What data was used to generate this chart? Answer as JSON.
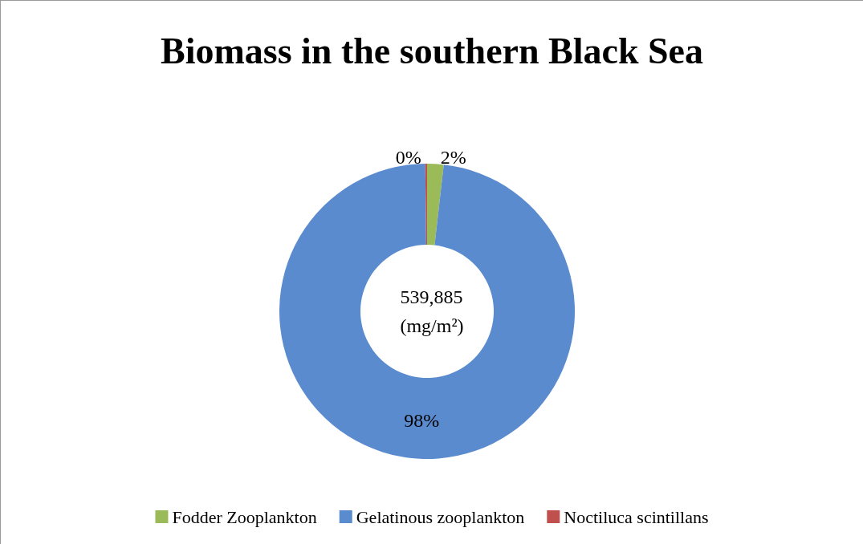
{
  "chart_data": {
    "type": "donut",
    "title": "Biomass in the southern Black Sea",
    "categories": [
      "Fodder Zooplankton",
      "Gelatinous zooplankton",
      "Noctiluca scintillans"
    ],
    "values": [
      1.8,
      98,
      0.2
    ],
    "value_labels": [
      "2%",
      "98%",
      "0%"
    ],
    "colors": [
      "#9bbb59",
      "#5b8bcf",
      "#c0504d"
    ],
    "annotations": [
      "539,885\n(mg/m²)"
    ],
    "legend": "bottom"
  }
}
